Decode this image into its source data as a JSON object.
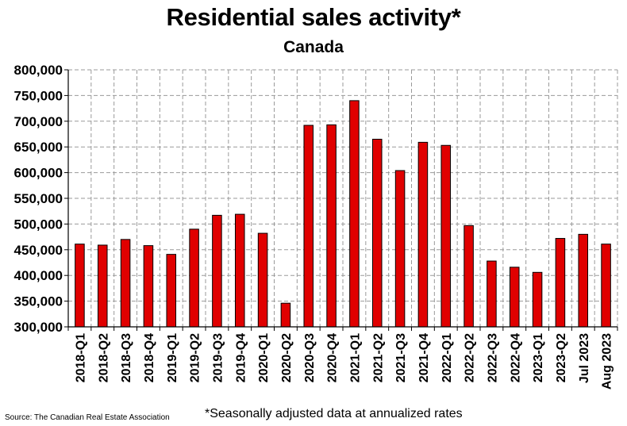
{
  "header": {
    "title": "Residential sales activity*",
    "subtitle": "Canada"
  },
  "footer": {
    "source": "Source: The Canadian Real Estate Association",
    "note": "*Seasonally adjusted data at annualized rates"
  },
  "chart_data": {
    "type": "bar",
    "title": "Residential sales activity*",
    "subtitle": "Canada",
    "categories": [
      "2018-Q1",
      "2018-Q2",
      "2018-Q3",
      "2018-Q4",
      "2019-Q1",
      "2019-Q2",
      "2019-Q3",
      "2019-Q4",
      "2020-Q1",
      "2020-Q2",
      "2020-Q3",
      "2020-Q4",
      "2021-Q1",
      "2021-Q2",
      "2021-Q3",
      "2021-Q4",
      "2022-Q1",
      "2022-Q2",
      "2022-Q3",
      "2022-Q4",
      "2023-Q1",
      "2023-Q2",
      "Jul 2023",
      "Aug 2023"
    ],
    "values": [
      461000,
      459000,
      470000,
      458000,
      441000,
      490000,
      517000,
      519000,
      482000,
      346000,
      692000,
      693000,
      740000,
      665000,
      604000,
      659000,
      653000,
      497000,
      428000,
      416000,
      406000,
      472000,
      480000,
      461000
    ],
    "ylim": [
      300000,
      800000
    ],
    "yticks": [
      300000,
      350000,
      400000,
      450000,
      500000,
      550000,
      600000,
      650000,
      700000,
      750000,
      800000
    ],
    "ytick_labels": [
      "300,000",
      "350,000",
      "400,000",
      "450,000",
      "500,000",
      "550,000",
      "600,000",
      "650,000",
      "700,000",
      "750,000",
      "800,000"
    ],
    "bar_color": "#e00000",
    "grid": true,
    "xlabel": "",
    "ylabel": ""
  }
}
